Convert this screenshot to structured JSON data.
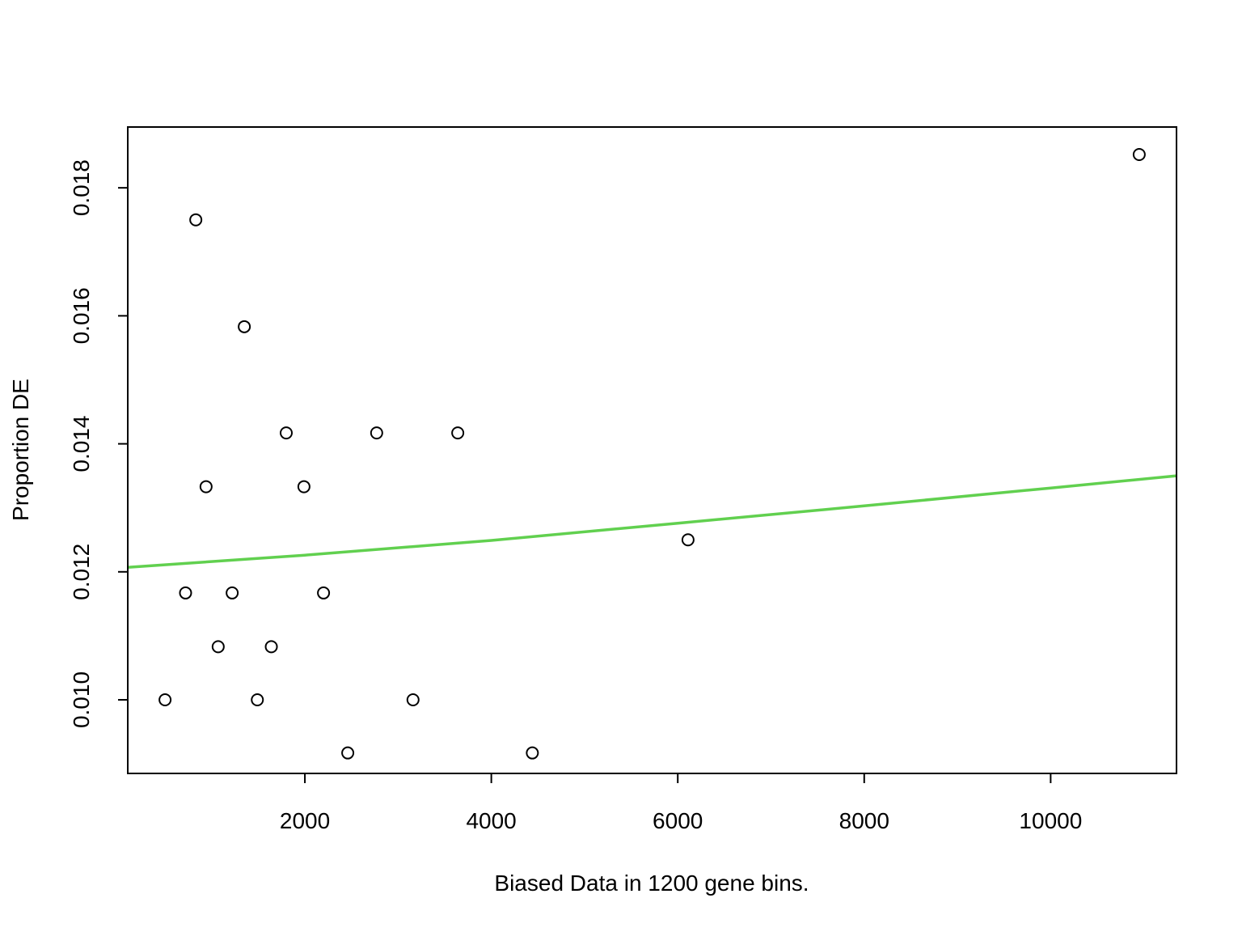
{
  "chart_data": {
    "type": "scatter",
    "title": "",
    "xlabel": "Biased Data in 1200 gene bins.",
    "ylabel": "Proportion DE",
    "xlim": [
      100,
      11350
    ],
    "ylim": [
      0.00885,
      0.01895
    ],
    "xticks": [
      2000,
      4000,
      6000,
      8000,
      10000
    ],
    "xtick_labels": [
      "2000",
      "4000",
      "6000",
      "8000",
      "10000"
    ],
    "yticks": [
      0.01,
      0.012,
      0.014,
      0.016,
      0.018
    ],
    "ytick_labels": [
      "0.010",
      "0.012",
      "0.014",
      "0.016",
      "0.018"
    ],
    "grid": false,
    "legend": "none",
    "points": [
      {
        "x": 500,
        "y": 0.01
      },
      {
        "x": 720,
        "y": 0.01167
      },
      {
        "x": 830,
        "y": 0.0175
      },
      {
        "x": 940,
        "y": 0.01333
      },
      {
        "x": 1070,
        "y": 0.01083
      },
      {
        "x": 1220,
        "y": 0.01167
      },
      {
        "x": 1350,
        "y": 0.01583
      },
      {
        "x": 1490,
        "y": 0.01
      },
      {
        "x": 1640,
        "y": 0.01083
      },
      {
        "x": 1800,
        "y": 0.01417
      },
      {
        "x": 1990,
        "y": 0.01333
      },
      {
        "x": 2200,
        "y": 0.01167
      },
      {
        "x": 2460,
        "y": 0.00917
      },
      {
        "x": 2770,
        "y": 0.01417
      },
      {
        "x": 3160,
        "y": 0.01
      },
      {
        "x": 3640,
        "y": 0.01417
      },
      {
        "x": 4440,
        "y": 0.00917
      },
      {
        "x": 6110,
        "y": 0.0125
      },
      {
        "x": 10950,
        "y": 0.01852
      }
    ],
    "fit_line": {
      "color": "#61d04f",
      "x": [
        100,
        2000,
        4000,
        6000,
        8000,
        10000,
        11350
      ],
      "y": [
        0.01207,
        0.01226,
        0.01249,
        0.01276,
        0.01303,
        0.01331,
        0.0135
      ]
    }
  }
}
